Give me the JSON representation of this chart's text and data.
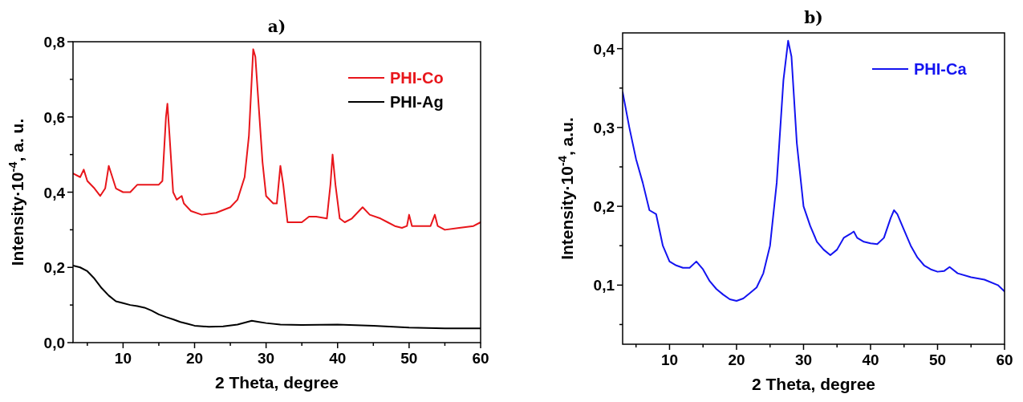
{
  "chart_data": [
    {
      "type": "line",
      "title": "a)",
      "xlabel": "2 Theta, degree",
      "ylabel": "Intensity·10$^{-4}$, a. u.",
      "xlim": [
        3,
        60
      ],
      "ylim": [
        0,
        0.8
      ],
      "xticks": [
        {
          "value": 5,
          "label": null
        },
        10,
        {
          "value": 15,
          "label": null
        },
        20,
        {
          "value": 25,
          "label": null
        },
        30,
        {
          "value": 35,
          "label": null
        },
        40,
        {
          "value": 45,
          "label": null
        },
        50,
        {
          "value": 55,
          "label": null
        },
        60
      ],
      "yticks": [
        {
          "value": 0,
          "label": "0,0"
        },
        {
          "value": 0.1,
          "label": null
        },
        {
          "value": 0.2,
          "label": "0,2"
        },
        {
          "value": 0.3,
          "label": null
        },
        {
          "value": 0.4,
          "label": "0,4"
        },
        {
          "value": 0.5,
          "label": null
        },
        {
          "value": 0.6,
          "label": "0,6"
        },
        {
          "value": 0.7,
          "label": null
        },
        {
          "value": 0.8,
          "label": "0,8"
        }
      ],
      "legend": "top right",
      "grid": false,
      "line_style": "solid",
      "series": [
        {
          "name": "PHI-Co",
          "color": "#e8161b",
          "x": [
            3,
            4,
            4.5,
            5,
            6,
            6.8,
            7.5,
            8,
            8.5,
            9,
            10,
            11,
            12,
            13,
            14,
            15,
            15.5,
            16,
            16.2,
            16.5,
            17,
            17.5,
            18.2,
            18.5,
            19.5,
            21,
            23,
            25,
            26,
            27,
            27.6,
            28.2,
            28.5,
            29,
            29.5,
            30,
            31,
            31.5,
            32,
            32.4,
            33,
            34,
            35,
            36,
            37,
            38.5,
            39,
            39.3,
            39.7,
            40.3,
            41,
            42,
            43.5,
            44.5,
            46,
            47,
            48,
            49,
            49.7,
            50,
            50.4,
            51,
            53,
            53.6,
            54,
            55,
            57,
            59,
            60
          ],
          "values": [
            0.45,
            0.44,
            0.46,
            0.43,
            0.41,
            0.39,
            0.41,
            0.47,
            0.44,
            0.41,
            0.4,
            0.4,
            0.42,
            0.42,
            0.42,
            0.42,
            0.43,
            0.6,
            0.635,
            0.55,
            0.4,
            0.38,
            0.39,
            0.37,
            0.35,
            0.34,
            0.345,
            0.36,
            0.38,
            0.44,
            0.55,
            0.78,
            0.76,
            0.62,
            0.48,
            0.39,
            0.37,
            0.37,
            0.47,
            0.42,
            0.32,
            0.32,
            0.32,
            0.335,
            0.335,
            0.33,
            0.42,
            0.5,
            0.42,
            0.33,
            0.32,
            0.33,
            0.36,
            0.34,
            0.33,
            0.32,
            0.31,
            0.305,
            0.31,
            0.34,
            0.31,
            0.31,
            0.31,
            0.34,
            0.31,
            0.3,
            0.305,
            0.31,
            0.32
          ]
        },
        {
          "name": "PHI-Ag",
          "color": "#000000",
          "x": [
            3,
            4,
            5,
            6,
            7,
            8,
            9,
            10,
            11,
            12,
            13,
            14,
            15,
            16,
            17,
            18,
            19,
            20,
            22,
            24,
            26,
            28,
            29,
            30,
            32,
            35,
            40,
            45,
            50,
            55,
            60
          ],
          "values": [
            0.205,
            0.2,
            0.19,
            0.17,
            0.145,
            0.125,
            0.11,
            0.105,
            0.1,
            0.097,
            0.093,
            0.085,
            0.075,
            0.068,
            0.062,
            0.055,
            0.05,
            0.045,
            0.042,
            0.043,
            0.048,
            0.058,
            0.055,
            0.052,
            0.048,
            0.047,
            0.048,
            0.045,
            0.04,
            0.038,
            0.038
          ]
        }
      ]
    },
    {
      "type": "line",
      "title": "b)",
      "xlabel": "2 Theta, degree",
      "ylabel": "Intensity·10$^{-4}$, a.u.",
      "xlim": [
        3,
        60
      ],
      "ylim": [
        0.025,
        0.42
      ],
      "xticks": [
        {
          "value": 5,
          "label": null
        },
        10,
        {
          "value": 15,
          "label": null
        },
        20,
        {
          "value": 25,
          "label": null
        },
        30,
        {
          "value": 35,
          "label": null
        },
        40,
        {
          "value": 45,
          "label": null
        },
        50,
        {
          "value": 55,
          "label": null
        },
        60
      ],
      "yticks": [
        {
          "value": 0.05,
          "label": null
        },
        {
          "value": 0.1,
          "label": "0,1"
        },
        {
          "value": 0.15,
          "label": null
        },
        {
          "value": 0.2,
          "label": "0,2"
        },
        {
          "value": 0.25,
          "label": null
        },
        {
          "value": 0.3,
          "label": "0,3"
        },
        {
          "value": 0.35,
          "label": null
        },
        {
          "value": 0.4,
          "label": "0,4"
        }
      ],
      "legend": "top right",
      "grid": false,
      "line_style": "solid",
      "series": [
        {
          "name": "PHI-Ca",
          "color": "#1414f0",
          "x": [
            3,
            4,
            5,
            6,
            7,
            8,
            8.5,
            9,
            10,
            11,
            12,
            13,
            14,
            15,
            16,
            17,
            18,
            19,
            20,
            21,
            22,
            23,
            24,
            25,
            26,
            27,
            27.7,
            28.2,
            29,
            30,
            31,
            32,
            33,
            34,
            35,
            36,
            37,
            37.5,
            38,
            39,
            40,
            41,
            42,
            43,
            43.5,
            44,
            45,
            46,
            47,
            48,
            49,
            50,
            51,
            51.8,
            53,
            55,
            57,
            59,
            60
          ],
          "values": [
            0.345,
            0.3,
            0.26,
            0.23,
            0.195,
            0.19,
            0.17,
            0.15,
            0.13,
            0.125,
            0.122,
            0.122,
            0.13,
            0.12,
            0.105,
            0.095,
            0.088,
            0.082,
            0.08,
            0.083,
            0.09,
            0.097,
            0.115,
            0.15,
            0.23,
            0.36,
            0.41,
            0.39,
            0.28,
            0.2,
            0.175,
            0.155,
            0.145,
            0.138,
            0.145,
            0.16,
            0.165,
            0.168,
            0.16,
            0.155,
            0.153,
            0.152,
            0.16,
            0.185,
            0.195,
            0.19,
            0.17,
            0.15,
            0.135,
            0.125,
            0.12,
            0.117,
            0.118,
            0.123,
            0.115,
            0.11,
            0.107,
            0.1,
            0.092
          ]
        }
      ]
    }
  ]
}
